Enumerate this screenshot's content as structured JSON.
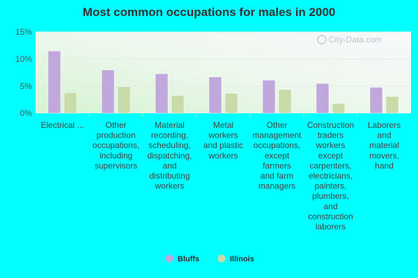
{
  "chart_data": {
    "type": "bar",
    "title": "Most common occupations for males in 2000",
    "watermark": "City-Data.com",
    "y_tick_labels": [
      "0%",
      "5%",
      "10%",
      "15%"
    ],
    "ylim": [
      0,
      15
    ],
    "categories": [
      "Electrical ...",
      "Other production occupations, including supervisors",
      "Material recording, scheduling, dispatching, and distributing workers",
      "Metal workers and plastic workers",
      "Other management occupations, except farmers and farm managers",
      "Construction traders workers except carpenters, electricians, painters, plumbers, and construction laborers",
      "Laborers and material movers, hand"
    ],
    "category_lines": [
      [
        "Electrical ..."
      ],
      [
        "Other",
        "production",
        "occupations,",
        "including",
        "supervisors"
      ],
      [
        "Material",
        "recording,",
        "scheduling,",
        "dispatching,",
        "and",
        "distributing",
        "workers"
      ],
      [
        "Metal",
        "workers",
        "and plastic",
        "workers"
      ],
      [
        "Other",
        "management",
        "occupations,",
        "except",
        "farmers",
        "and farm",
        "managers"
      ],
      [
        "Construction",
        "traders",
        "workers",
        "except",
        "carpenters,",
        "electricians,",
        "painters,",
        "plumbers,",
        "and",
        "construction",
        "laborers"
      ],
      [
        "Laborers",
        "and",
        "material",
        "movers,",
        "hand"
      ]
    ],
    "series": [
      {
        "name": "Bluffs",
        "color": "#C0A8DC",
        "values": [
          11.5,
          8.0,
          7.3,
          6.7,
          6.1,
          5.5,
          4.8
        ]
      },
      {
        "name": "Illinois",
        "color": "#C9DBA8",
        "values": [
          3.8,
          4.9,
          3.3,
          3.7,
          4.4,
          1.8,
          3.1
        ]
      }
    ],
    "legend_position": "bottom-center",
    "grid": true
  }
}
